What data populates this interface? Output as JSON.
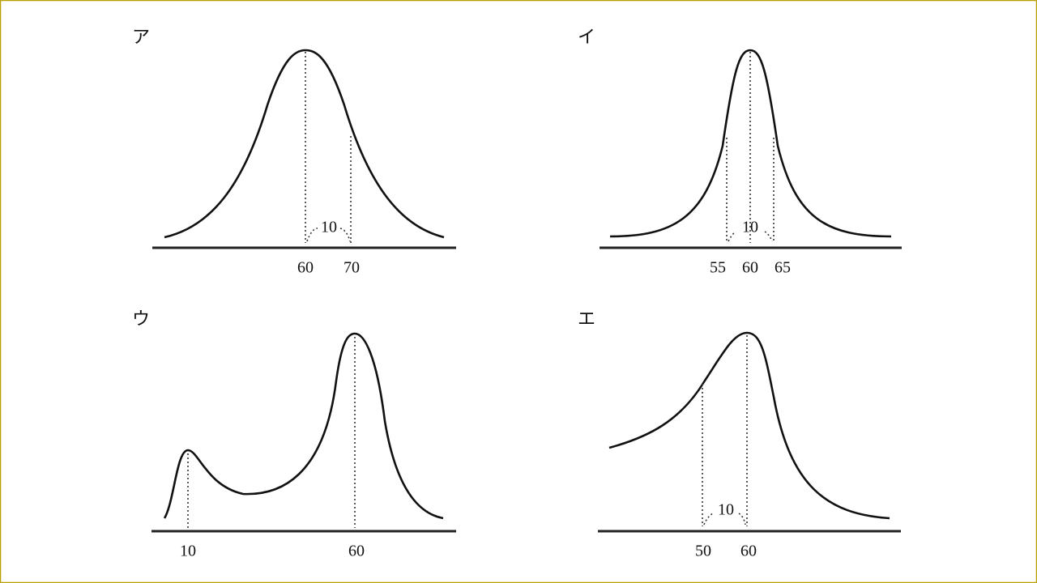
{
  "panels": [
    {
      "label": "ア",
      "ticks": [
        "60",
        "70"
      ],
      "width_label": "10"
    },
    {
      "label": "イ",
      "ticks": [
        "55",
        "60",
        "65"
      ],
      "width_label": "10"
    },
    {
      "label": "ウ",
      "ticks": [
        "10",
        "60"
      ]
    },
    {
      "label": "エ",
      "ticks": [
        "50",
        "60"
      ],
      "width_label": "10"
    }
  ]
}
